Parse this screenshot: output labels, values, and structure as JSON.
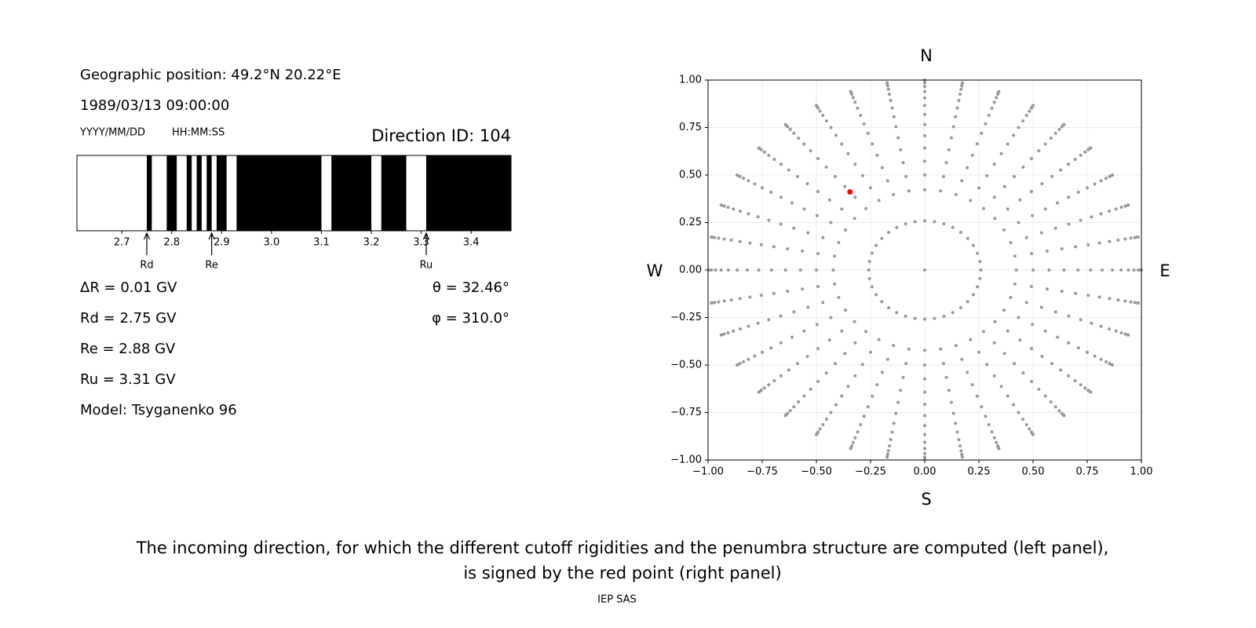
{
  "header": {
    "position": "Geographic position: 49.2°N 20.22°E",
    "datetime": "1989/03/13 09:00:00",
    "date_format": "YYYY/MM/DD",
    "time_format": "HH:MM:SS"
  },
  "results": {
    "left": [
      "ΔR = 0.01 GV",
      "Rd = 2.75 GV",
      "Re = 2.88 GV",
      "Ru = 3.31 GV",
      "Model: Tsyganenko 96"
    ],
    "right": [
      "θ = 32.46°",
      "φ = 310.0°"
    ]
  },
  "chart_data": [
    {
      "type": "penumbra",
      "title": "Direction ID: 104",
      "xlim": [
        2.61,
        3.48
      ],
      "xticks": [
        2.7,
        2.8,
        2.9,
        {
          "value": 3,
          "label": "3.0"
        },
        3.1,
        3.2,
        3.3,
        3.4
      ],
      "allowed_color": "#ffffff",
      "forbidden_color": "#000000",
      "forbidden_bands": [
        [
          2.75,
          2.76
        ],
        [
          2.79,
          2.81
        ],
        [
          2.83,
          2.84
        ],
        [
          2.85,
          2.86
        ],
        [
          2.87,
          2.88
        ],
        [
          2.89,
          2.91
        ],
        [
          2.93,
          3.1
        ],
        [
          3.12,
          3.2
        ],
        [
          3.22,
          3.27
        ],
        [
          3.31,
          3.48
        ]
      ],
      "markers": [
        {
          "label": "Rd",
          "value": 2.75
        },
        {
          "label": "Re",
          "value": 2.88
        },
        {
          "label": "Ru",
          "value": 3.31
        }
      ]
    },
    {
      "type": "scatter",
      "compass": {
        "north": "N",
        "south": "S",
        "west": "W",
        "east": "E"
      },
      "xlim": [
        -1,
        1
      ],
      "ylim": [
        -1,
        1
      ],
      "grid": true,
      "color": "#999999",
      "xticks": [
        {
          "value": -1,
          "label": "−1.00"
        },
        {
          "value": -0.75,
          "label": "−0.75"
        },
        {
          "value": -0.5,
          "label": "−0.50"
        },
        {
          "value": -0.25,
          "label": "−0.25"
        },
        {
          "value": 0,
          "label": "0.00"
        },
        {
          "value": 0.25,
          "label": "0.25"
        },
        {
          "value": 0.5,
          "label": "0.50"
        },
        {
          "value": 0.75,
          "label": "0.75"
        },
        {
          "value": 1,
          "label": "1.00"
        }
      ],
      "yticks": [
        {
          "value": -1,
          "label": "−1.00"
        },
        {
          "value": -0.75,
          "label": "−0.75"
        },
        {
          "value": -0.5,
          "label": "−0.50"
        },
        {
          "value": -0.25,
          "label": "−0.25"
        },
        {
          "value": 0,
          "label": "0.00"
        },
        {
          "value": 0.25,
          "label": "0.25"
        },
        {
          "value": 0.5,
          "label": "0.50"
        },
        {
          "value": 0.75,
          "label": "0.75"
        },
        {
          "value": 1,
          "label": "1.00"
        }
      ],
      "zenith_angles": [
        0,
        15,
        25,
        30,
        35,
        40,
        45,
        50,
        55,
        60,
        65,
        70,
        75,
        80,
        85,
        90
      ],
      "azimuths": [
        0,
        10,
        20,
        30,
        40,
        50,
        60,
        70,
        80,
        90,
        100,
        110,
        120,
        130,
        140,
        150,
        160,
        170,
        180,
        190,
        200,
        210,
        220,
        230,
        240,
        250,
        260,
        270,
        280,
        290,
        300,
        310,
        320,
        330,
        340,
        350
      ],
      "highlight": {
        "zenith": 32.46,
        "azimuth": 310,
        "color": "#ff0000"
      }
    }
  ],
  "caption": [
    "The incoming direction, for which the different cutoff rigidities and the penumbra structure are computed (left panel),",
    "is signed by the red point (right panel)"
  ],
  "footer": "IEP SAS"
}
